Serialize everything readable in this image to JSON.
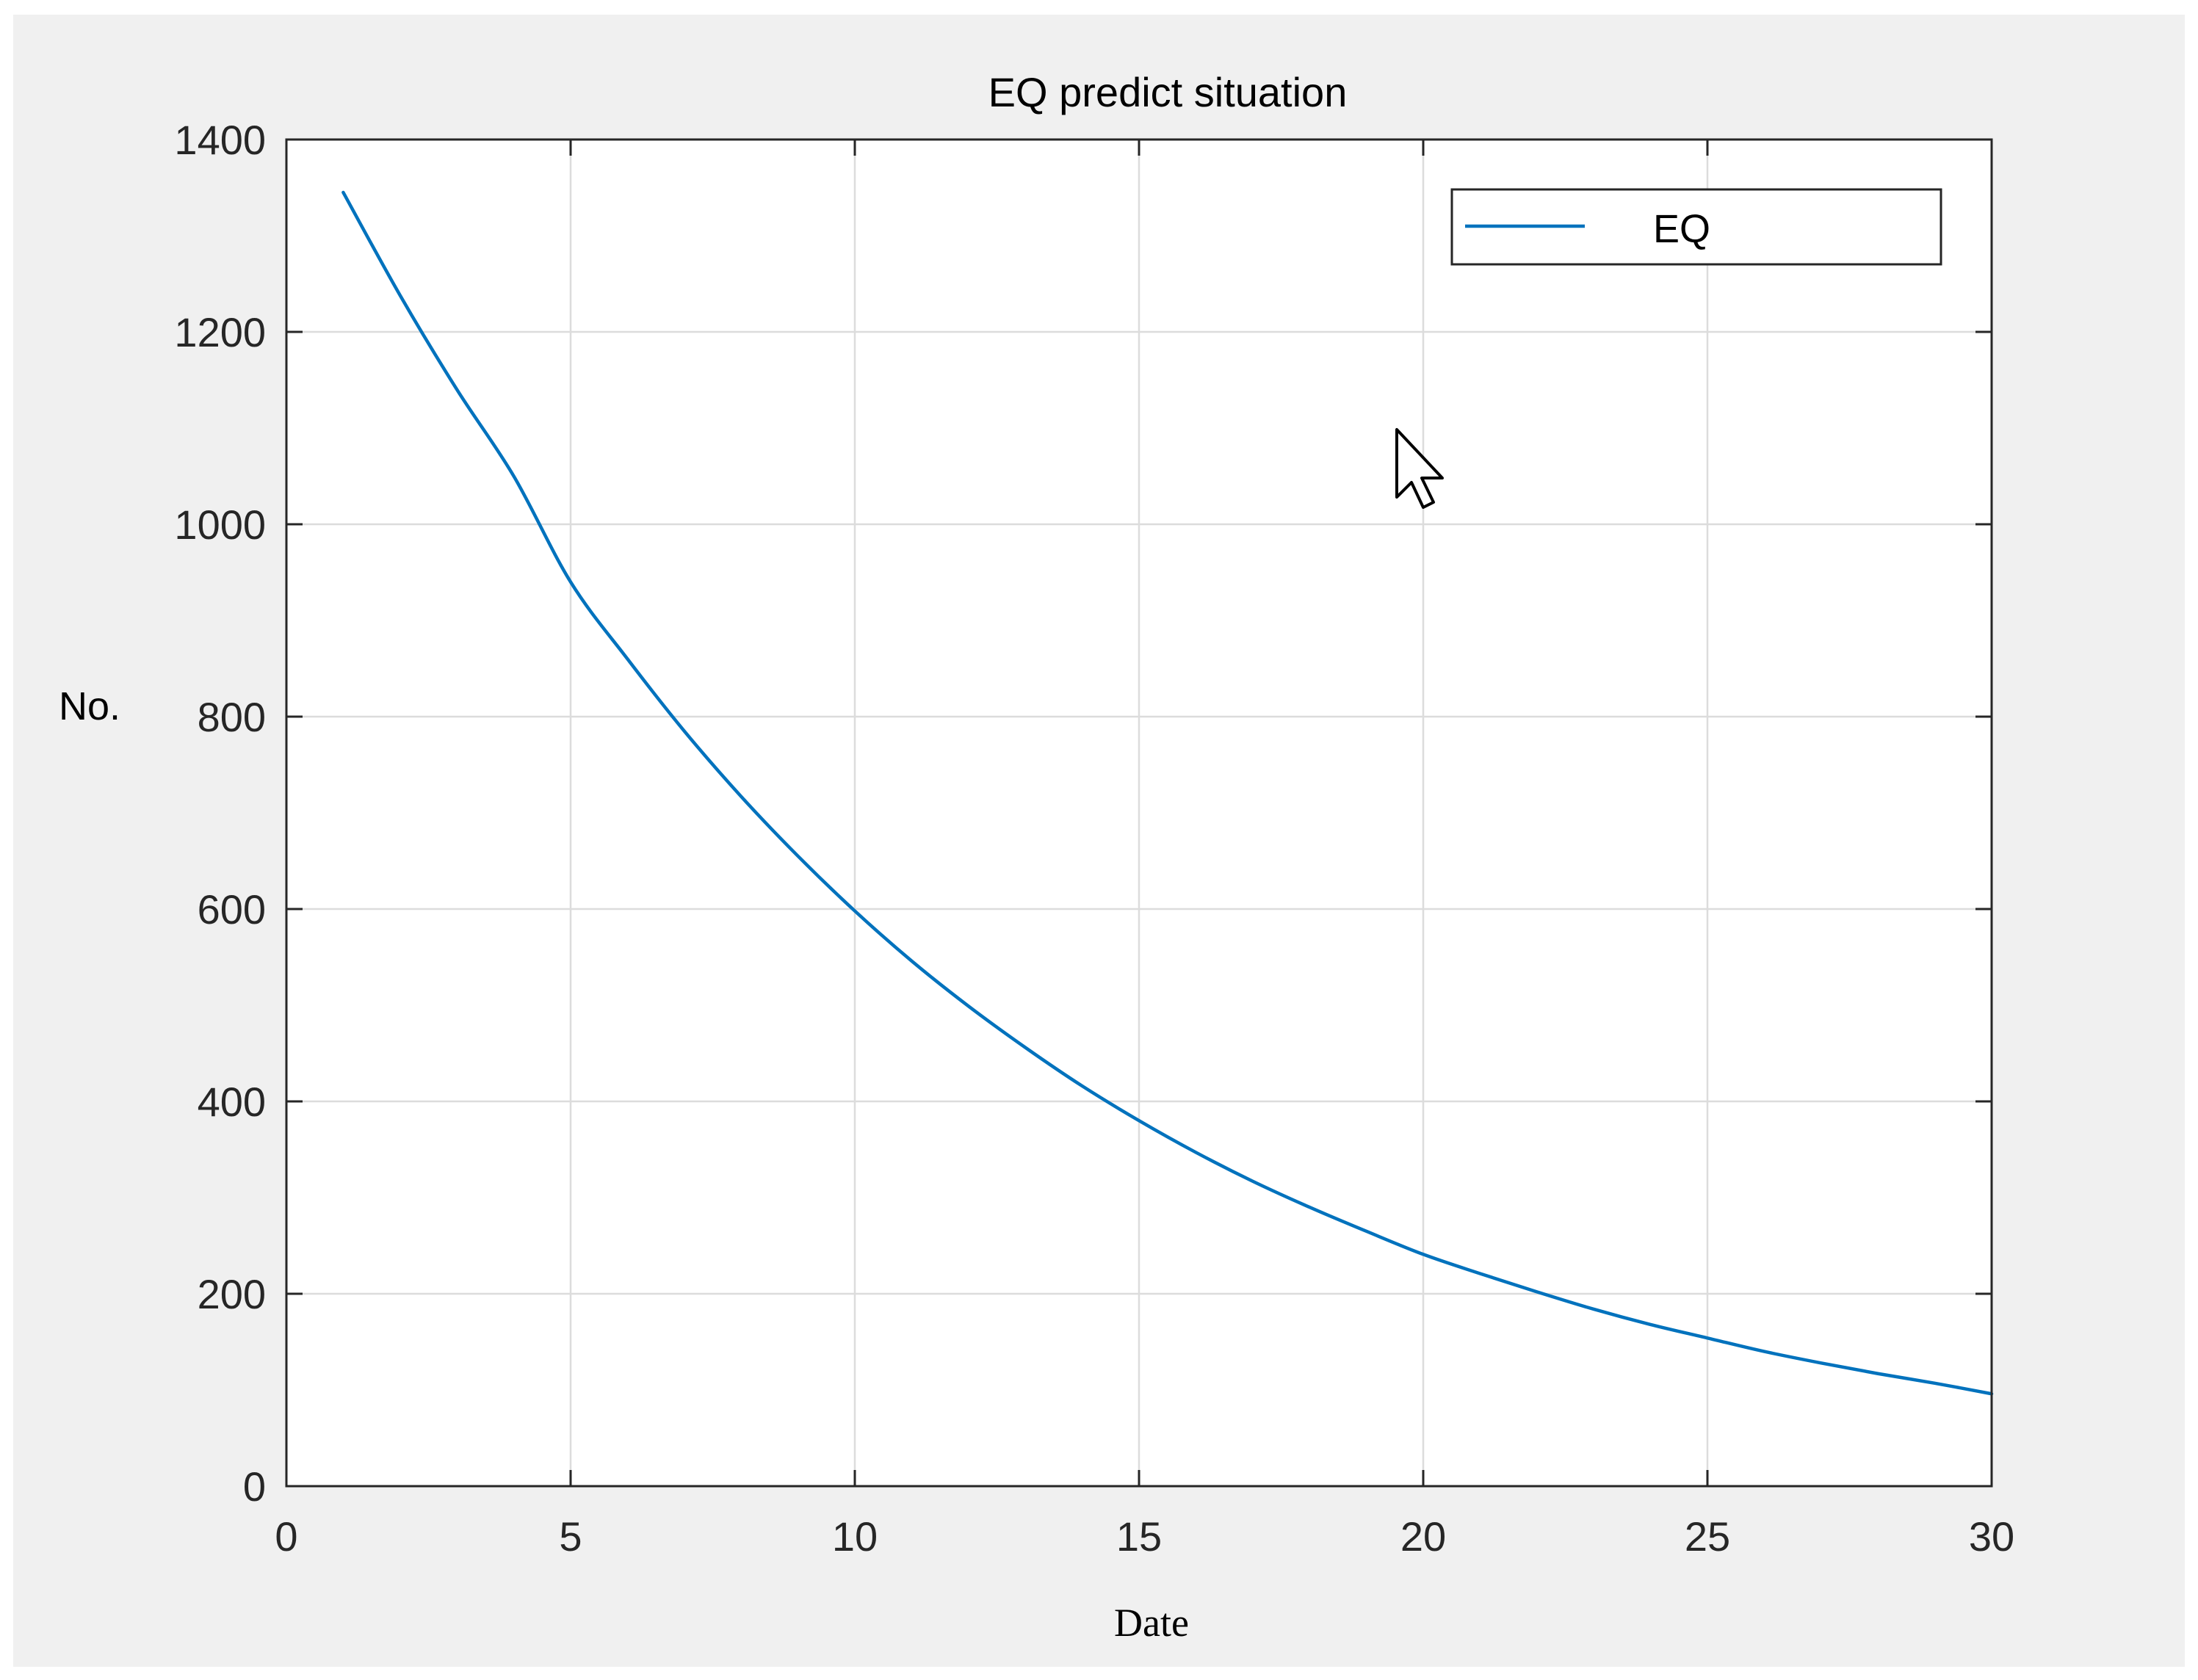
{
  "chart_data": {
    "type": "line",
    "title": "EQ predict situation",
    "xlabel": "Date",
    "ylabel": "No.",
    "xlim": [
      0,
      30
    ],
    "ylim": [
      0,
      1400
    ],
    "xticks": [
      0,
      5,
      10,
      15,
      20,
      25,
      30
    ],
    "yticks": [
      0,
      200,
      400,
      600,
      800,
      1000,
      1200,
      1400
    ],
    "grid": true,
    "legend_position": "top-right",
    "series": [
      {
        "name": "EQ",
        "color": "#0072BD",
        "x": [
          1,
          2,
          3,
          4,
          5,
          6,
          7,
          8,
          9,
          10,
          11,
          12,
          13,
          14,
          15,
          16,
          17,
          18,
          19,
          20,
          21,
          22,
          23,
          24,
          25,
          26,
          27,
          28,
          29,
          30
        ],
        "y": [
          1345,
          1238,
          1140,
          1050,
          940,
          860,
          785,
          717,
          655,
          598,
          546,
          499,
          456,
          416,
          380,
          347,
          317,
          290,
          265,
          241,
          221,
          202,
          184,
          168,
          154,
          140,
          128,
          117,
          107,
          96
        ]
      }
    ]
  },
  "cursor_icon": "mouse-pointer-icon"
}
